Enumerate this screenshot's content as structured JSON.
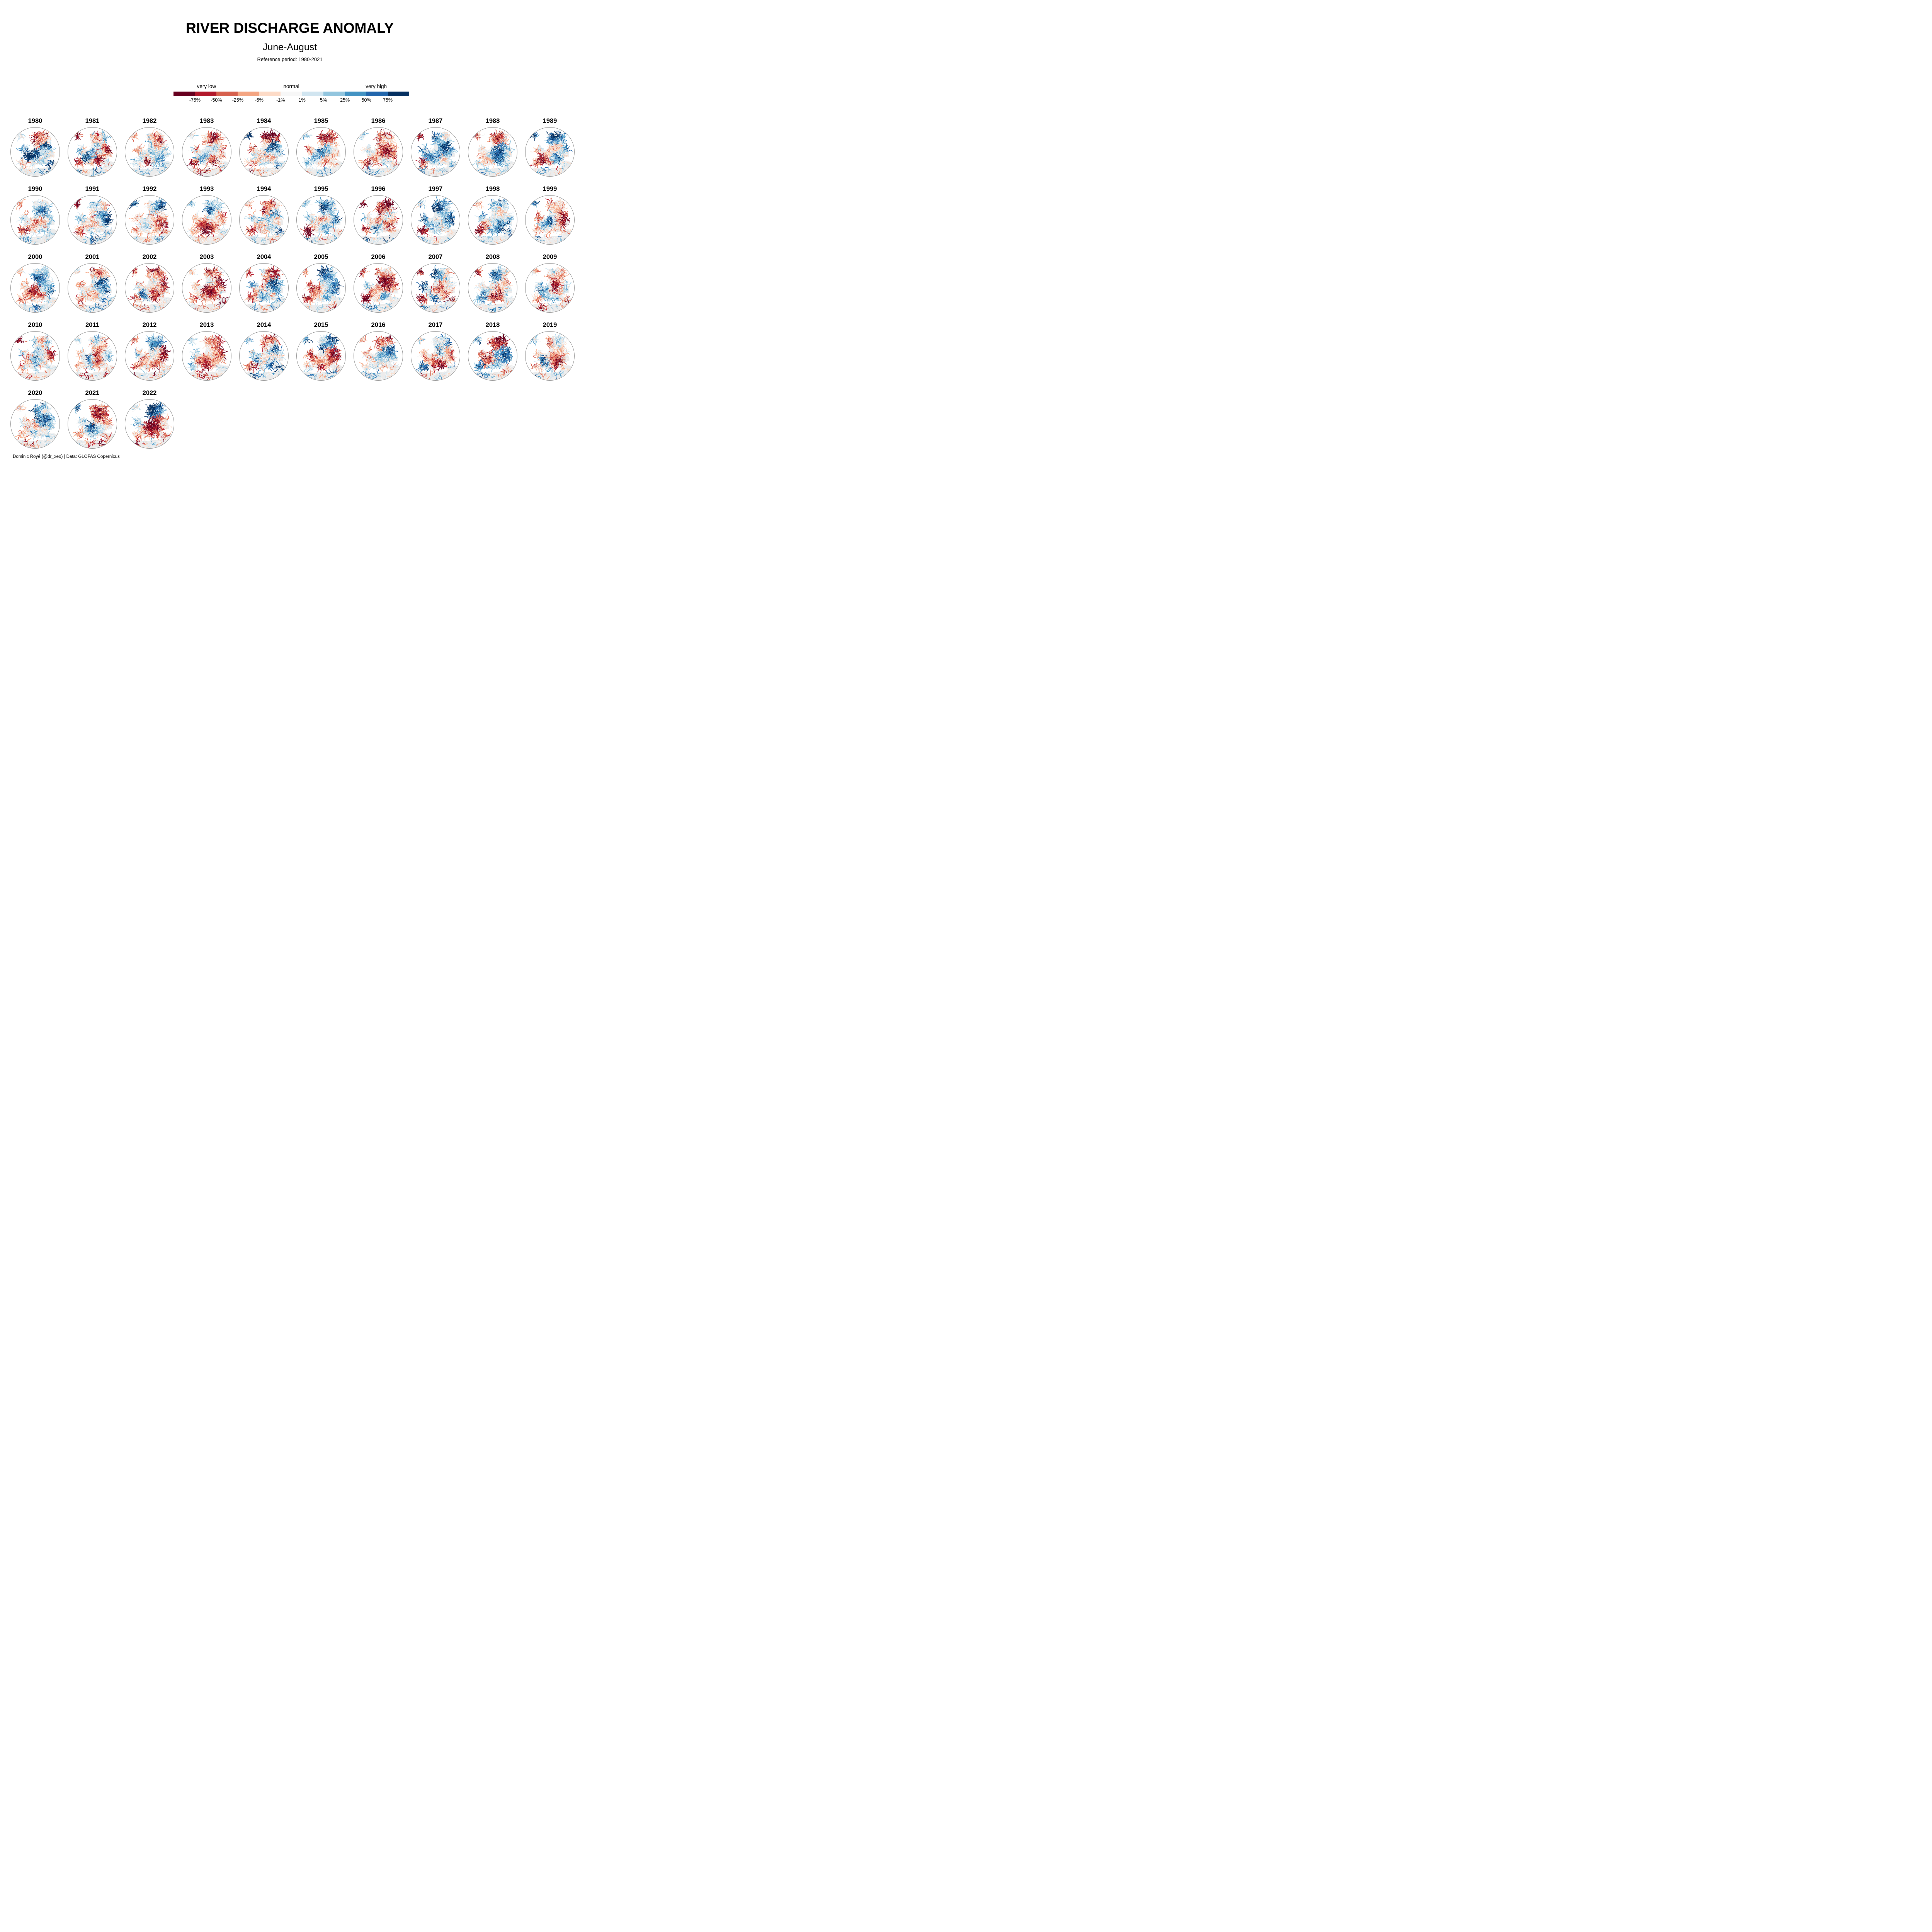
{
  "header": {
    "title": "RIVER DISCHARGE ANOMALY",
    "subtitle": "June-August",
    "reference": "Reference period: 1980-2021"
  },
  "credit": "Dominic Royé (@dr_xeo) | Data: GLOFAS Copernicus",
  "legend": {
    "category_labels": [
      "very low",
      "normal",
      "very high"
    ],
    "category_positions_pct": [
      14,
      50,
      86
    ],
    "tick_labels": [
      "-75%",
      "-50%",
      "-25%",
      "-5%",
      "-1%",
      "1%",
      "5%",
      "25%",
      "50%",
      "75%"
    ],
    "colors": [
      "#67001f",
      "#b2182b",
      "#d6604d",
      "#f4a582",
      "#fddbc7",
      "#f7f7f7",
      "#d1e5f0",
      "#92c5de",
      "#4393c3",
      "#2166ac",
      "#053061"
    ]
  },
  "map_style": {
    "land_color": "#ececec",
    "sea_color": "#ffffff",
    "circle_border_color": "#8a8a8a"
  },
  "chart_data": {
    "type": "heatmap",
    "subtype": "small-multiple river-anomaly maps of Europe, one globe per year",
    "title": "RIVER DISCHARGE ANOMALY",
    "season": "June-August",
    "reference_period": "1980-2021",
    "unit": "%",
    "breaks": [
      -75,
      -50,
      -25,
      -5,
      -1,
      1,
      5,
      25,
      50,
      75
    ],
    "palette": [
      "#67001f",
      "#b2182b",
      "#d6604d",
      "#f4a582",
      "#fddbc7",
      "#f7f7f7",
      "#d1e5f0",
      "#92c5de",
      "#4393c3",
      "#2166ac",
      "#053061"
    ],
    "legend_categories": [
      "very low",
      "normal",
      "very high"
    ],
    "region_keys": [
      "iceland",
      "scandinavia",
      "uk",
      "france",
      "central",
      "east",
      "balkans",
      "italy",
      "iberia",
      "africa"
    ],
    "anomaly_scale_note": "estimated visual dominance per region, -1 = strongly below normal (red), +1 = strongly above normal (blue)",
    "years": [
      {
        "year": 1980,
        "anomaly": [
          0.1,
          -0.6,
          0.2,
          0.6,
          0.8,
          0.6,
          0.3,
          0.2,
          0.0,
          0.3
        ]
      },
      {
        "year": 1981,
        "anomaly": [
          -0.3,
          0.1,
          0.1,
          0.4,
          0.5,
          -0.3,
          -0.3,
          -0.5,
          -0.3,
          0.2
        ]
      },
      {
        "year": 1982,
        "anomaly": [
          -0.2,
          -0.2,
          -0.2,
          0.3,
          0.2,
          0.2,
          0.1,
          -0.2,
          -0.3,
          0.3
        ]
      },
      {
        "year": 1983,
        "anomaly": [
          0.5,
          -0.4,
          -0.2,
          0.1,
          0.3,
          -0.2,
          -0.2,
          -0.3,
          -0.4,
          -0.4
        ]
      },
      {
        "year": 1984,
        "anomaly": [
          0.5,
          -0.5,
          -0.3,
          -0.3,
          0.0,
          0.4,
          0.2,
          0.2,
          -0.2,
          -0.3
        ]
      },
      {
        "year": 1985,
        "anomaly": [
          -0.2,
          -0.3,
          0.1,
          0.3,
          0.4,
          -0.2,
          0.1,
          0.3,
          -0.2,
          0.1
        ]
      },
      {
        "year": 1986,
        "anomaly": [
          0.2,
          -0.6,
          -0.2,
          -0.2,
          -0.3,
          -0.4,
          -0.2,
          -0.2,
          -0.3,
          0.3
        ]
      },
      {
        "year": 1987,
        "anomaly": [
          -0.2,
          0.4,
          0.1,
          0.5,
          0.4,
          0.4,
          0.1,
          -0.2,
          -0.2,
          0.2
        ]
      },
      {
        "year": 1988,
        "anomaly": [
          -0.4,
          -0.2,
          0.1,
          0.3,
          0.3,
          0.5,
          0.1,
          -0.2,
          0.2,
          0.2
        ]
      },
      {
        "year": 1989,
        "anomaly": [
          0.5,
          0.5,
          -0.2,
          -0.3,
          -0.2,
          0.2,
          0.0,
          -0.3,
          -0.5,
          0.1
        ]
      },
      {
        "year": 1990,
        "anomaly": [
          -0.4,
          0.2,
          -0.2,
          -0.3,
          -0.3,
          0.3,
          -0.2,
          -0.2,
          -0.2,
          0.2
        ]
      },
      {
        "year": 1991,
        "anomaly": [
          -0.3,
          -0.2,
          -0.1,
          -0.2,
          0.2,
          0.6,
          0.2,
          0.2,
          -0.4,
          0.3
        ]
      },
      {
        "year": 1992,
        "anomaly": [
          0.4,
          0.3,
          -0.2,
          -0.3,
          -0.4,
          -0.3,
          -0.3,
          -0.2,
          -0.2,
          0.2
        ]
      },
      {
        "year": 1993,
        "anomaly": [
          0.4,
          0.2,
          -0.2,
          -0.3,
          -0.4,
          -0.2,
          -0.3,
          -0.3,
          -0.2,
          -0.2
        ]
      },
      {
        "year": 1994,
        "anomaly": [
          -0.3,
          -0.4,
          -0.2,
          -0.2,
          -0.3,
          0.3,
          0.1,
          0.1,
          -0.2,
          -0.2
        ]
      },
      {
        "year": 1995,
        "anomaly": [
          0.5,
          0.4,
          -0.2,
          -0.1,
          0.0,
          0.2,
          0.0,
          -0.3,
          -0.5,
          0.1
        ]
      },
      {
        "year": 1996,
        "anomaly": [
          -0.4,
          -0.6,
          -0.2,
          -0.3,
          -0.4,
          -0.3,
          0.1,
          0.2,
          -0.2,
          0.4
        ]
      },
      {
        "year": 1997,
        "anomaly": [
          0.4,
          0.5,
          0.2,
          0.3,
          0.5,
          0.3,
          -0.1,
          -0.2,
          -0.3,
          0.1
        ]
      },
      {
        "year": 1998,
        "anomaly": [
          -0.3,
          0.4,
          0.1,
          -0.3,
          0.0,
          0.4,
          0.2,
          0.3,
          -0.2,
          0.1
        ]
      },
      {
        "year": 1999,
        "anomaly": [
          0.4,
          -0.2,
          0.1,
          0.4,
          0.2,
          -0.3,
          -0.2,
          -0.2,
          -0.2,
          0.2
        ]
      },
      {
        "year": 2000,
        "anomaly": [
          -0.3,
          0.3,
          -0.2,
          -0.3,
          -0.3,
          0.4,
          -0.2,
          -0.2,
          -0.3,
          0.3
        ]
      },
      {
        "year": 2001,
        "anomaly": [
          -0.3,
          -0.3,
          -0.1,
          -0.3,
          0.1,
          0.6,
          0.2,
          -0.2,
          -0.4,
          0.3
        ]
      },
      {
        "year": 2002,
        "anomaly": [
          -0.4,
          -0.5,
          0.1,
          0.3,
          0.0,
          -0.4,
          -0.1,
          0.2,
          -0.4,
          -0.2
        ]
      },
      {
        "year": 2003,
        "anomaly": [
          0.3,
          -0.3,
          -0.2,
          -0.5,
          -0.7,
          -0.5,
          -0.4,
          -0.4,
          -0.4,
          -0.3
        ]
      },
      {
        "year": 2004,
        "anomaly": [
          -0.3,
          -0.4,
          -0.1,
          -0.2,
          -0.2,
          0.4,
          0.2,
          0.1,
          -0.2,
          0.2
        ]
      },
      {
        "year": 2005,
        "anomaly": [
          -0.4,
          0.5,
          -0.2,
          -0.2,
          0.0,
          0.3,
          0.3,
          -0.2,
          -0.7,
          -0.3
        ]
      },
      {
        "year": 2006,
        "anomaly": [
          -0.3,
          -0.6,
          -0.2,
          -0.2,
          -0.3,
          -0.3,
          -0.1,
          -0.2,
          -0.4,
          0.4
        ]
      },
      {
        "year": 2007,
        "anomaly": [
          -0.2,
          0.3,
          0.4,
          0.2,
          -0.2,
          -0.4,
          -0.3,
          0.2,
          -0.2,
          0.2
        ]
      },
      {
        "year": 2008,
        "anomaly": [
          -0.4,
          0.2,
          -0.1,
          0.1,
          0.3,
          -0.2,
          -0.3,
          -0.3,
          0.1,
          0.2
        ]
      },
      {
        "year": 2009,
        "anomaly": [
          -0.2,
          -0.3,
          -0.1,
          0.2,
          0.3,
          -0.3,
          0.2,
          0.3,
          -0.2,
          -0.2
        ]
      },
      {
        "year": 2010,
        "anomaly": [
          -0.4,
          0.2,
          0.2,
          -0.3,
          0.4,
          -0.3,
          0.3,
          0.2,
          0.0,
          -0.3
        ]
      },
      {
        "year": 2011,
        "anomaly": [
          -0.3,
          -0.2,
          -0.1,
          -0.4,
          0.3,
          -0.2,
          -0.2,
          0.3,
          -0.2,
          -0.4
        ]
      },
      {
        "year": 2012,
        "anomaly": [
          -0.4,
          0.5,
          0.2,
          -0.2,
          -0.2,
          -0.5,
          -0.4,
          -0.2,
          -0.4,
          -0.2
        ]
      },
      {
        "year": 2013,
        "anomaly": [
          0.3,
          -0.5,
          0.2,
          -0.3,
          -0.6,
          -0.3,
          -0.2,
          -0.2,
          0.3,
          -0.3
        ]
      },
      {
        "year": 2014,
        "anomaly": [
          0.3,
          -0.4,
          -0.1,
          0.2,
          -0.2,
          0.4,
          0.4,
          0.3,
          -0.2,
          0.3
        ]
      },
      {
        "year": 2015,
        "anomaly": [
          0.4,
          0.5,
          -0.1,
          -0.2,
          -0.5,
          -0.4,
          -0.3,
          -0.3,
          -0.3,
          0.2
        ]
      },
      {
        "year": 2016,
        "anomaly": [
          -0.3,
          -0.5,
          0.2,
          -0.2,
          0.3,
          0.2,
          0.2,
          -0.2,
          -0.4,
          0.3
        ]
      },
      {
        "year": 2017,
        "anomaly": [
          -0.3,
          0.5,
          0.3,
          -0.3,
          -0.5,
          -0.2,
          -0.3,
          -0.3,
          0.2,
          -0.2
        ]
      },
      {
        "year": 2018,
        "anomaly": [
          0.2,
          -0.6,
          0.1,
          -0.2,
          -0.3,
          0.2,
          0.3,
          0.2,
          0.4,
          0.1
        ]
      },
      {
        "year": 2019,
        "anomaly": [
          -0.3,
          -0.3,
          -0.1,
          0.3,
          -0.4,
          -0.2,
          -0.4,
          0.2,
          -0.2,
          0.2
        ]
      },
      {
        "year": 2020,
        "anomaly": [
          -0.1,
          0.6,
          0.1,
          -0.5,
          -0.3,
          0.3,
          0.2,
          0.1,
          -0.2,
          -0.2
        ]
      },
      {
        "year": 2021,
        "anomaly": [
          0.4,
          -0.2,
          0.3,
          0.2,
          0.5,
          -0.4,
          -0.2,
          0.2,
          -0.2,
          -0.3
        ]
      },
      {
        "year": 2022,
        "anomaly": [
          0.6,
          0.6,
          -0.2,
          -0.4,
          -0.6,
          -0.5,
          -0.4,
          -0.4,
          -0.3,
          -0.3
        ]
      }
    ],
    "layout": {
      "columns": 10,
      "rows": 5,
      "legend_position": "top-center",
      "grid": false
    }
  }
}
